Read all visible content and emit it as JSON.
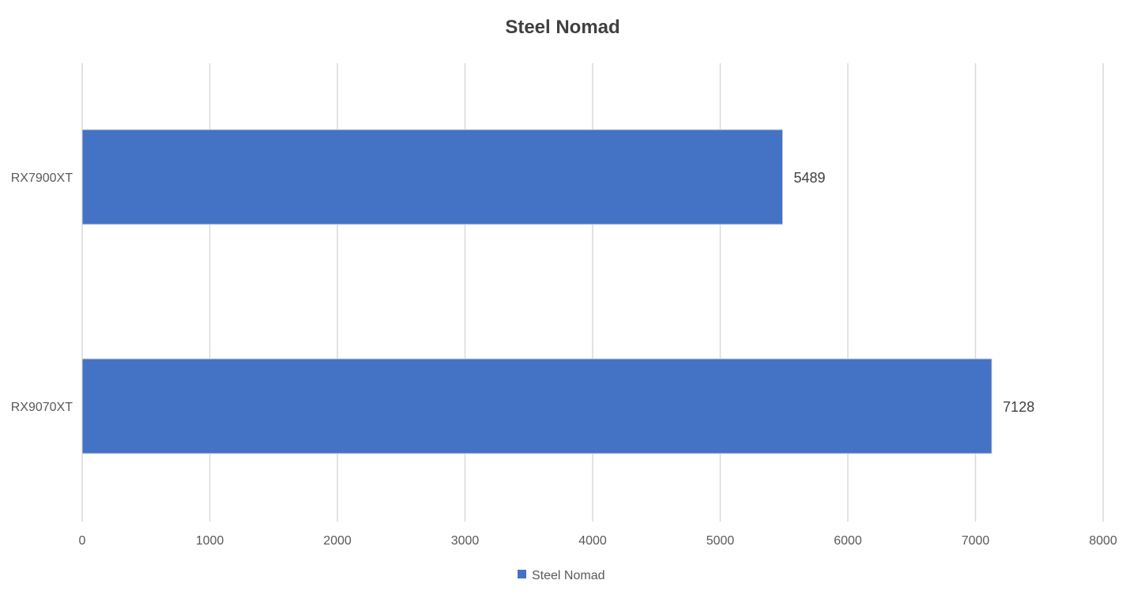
{
  "chart_data": {
    "type": "bar",
    "orientation": "horizontal",
    "title": "Steel Nomad",
    "categories": [
      "RX7900XT",
      "RX9070XT"
    ],
    "series": [
      {
        "name": "Steel Nomad",
        "values": [
          5489,
          7128
        ],
        "color": "#4472C4"
      }
    ],
    "xlim": [
      0,
      8000
    ],
    "x_ticks": [
      "0",
      "1000",
      "2000",
      "3000",
      "4000",
      "5000",
      "6000",
      "7000",
      "8000"
    ],
    "data_labels": [
      "5489",
      "7128"
    ],
    "grid": true,
    "legend": "bottom",
    "xlabel": "",
    "ylabel": ""
  },
  "colors": {
    "bar": "#4472C4",
    "grid": "#D9D9D9",
    "title": "#404040",
    "tick_text": "#595959"
  }
}
